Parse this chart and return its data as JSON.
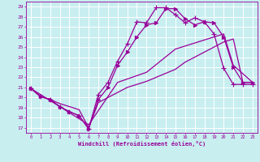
{
  "xlabel": "Windchill (Refroidissement éolien,°C)",
  "xlim": [
    -0.5,
    23.5
  ],
  "ylim": [
    16.5,
    29.5
  ],
  "yticks": [
    17,
    18,
    19,
    20,
    21,
    22,
    23,
    24,
    25,
    26,
    27,
    28,
    29
  ],
  "xticks": [
    0,
    1,
    2,
    3,
    4,
    5,
    6,
    7,
    8,
    9,
    10,
    11,
    12,
    13,
    14,
    15,
    16,
    17,
    18,
    19,
    20,
    21,
    22,
    23
  ],
  "bg_color": "#c8eef0",
  "line_color": "#990099",
  "grid_color": "#ffffff",
  "lines": [
    {
      "x": [
        0,
        1,
        2,
        3,
        4,
        5,
        6,
        7,
        8,
        9,
        10,
        11,
        12,
        13,
        14,
        15,
        16,
        17,
        18,
        19,
        20,
        21,
        22,
        23
      ],
      "y": [
        20.9,
        20.1,
        19.8,
        19.1,
        18.6,
        18.2,
        16.9,
        20.3,
        21.5,
        23.6,
        25.3,
        27.5,
        27.4,
        28.9,
        28.9,
        28.2,
        27.4,
        27.9,
        27.5,
        26.3,
        22.9,
        21.3,
        21.3,
        21.3
      ],
      "marker": "+",
      "markersize": 4,
      "linewidth": 0.9
    },
    {
      "x": [
        0,
        1,
        2,
        3,
        4,
        5,
        6,
        7,
        8,
        9,
        10,
        11,
        12,
        13,
        14,
        15,
        16,
        17,
        18,
        19,
        20,
        21,
        22,
        23
      ],
      "y": [
        20.9,
        20.1,
        19.8,
        19.1,
        18.6,
        18.2,
        16.9,
        19.8,
        21.0,
        23.2,
        24.5,
        26.0,
        27.2,
        27.4,
        28.8,
        28.8,
        27.8,
        27.2,
        27.5,
        27.4,
        26.0,
        23.0,
        21.5,
        21.5
      ],
      "marker": ">",
      "markersize": 3,
      "linewidth": 0.9
    },
    {
      "x": [
        0,
        6,
        9,
        12,
        15,
        20,
        21,
        23
      ],
      "y": [
        20.9,
        17.3,
        21.5,
        22.5,
        24.8,
        26.3,
        23.2,
        21.5
      ],
      "marker": null,
      "markersize": 0,
      "linewidth": 0.9
    },
    {
      "x": [
        0,
        1,
        2,
        3,
        4,
        5,
        6,
        7,
        8,
        9,
        10,
        11,
        12,
        13,
        14,
        15,
        16,
        17,
        18,
        19,
        20,
        21,
        22,
        23
      ],
      "y": [
        20.9,
        20.1,
        19.8,
        19.4,
        19.1,
        18.8,
        17.0,
        19.5,
        20.0,
        20.5,
        21.0,
        21.3,
        21.6,
        22.0,
        22.4,
        22.8,
        23.5,
        24.0,
        24.5,
        25.0,
        25.5,
        25.8,
        21.5,
        21.5
      ],
      "marker": null,
      "markersize": 0,
      "linewidth": 0.9
    }
  ]
}
